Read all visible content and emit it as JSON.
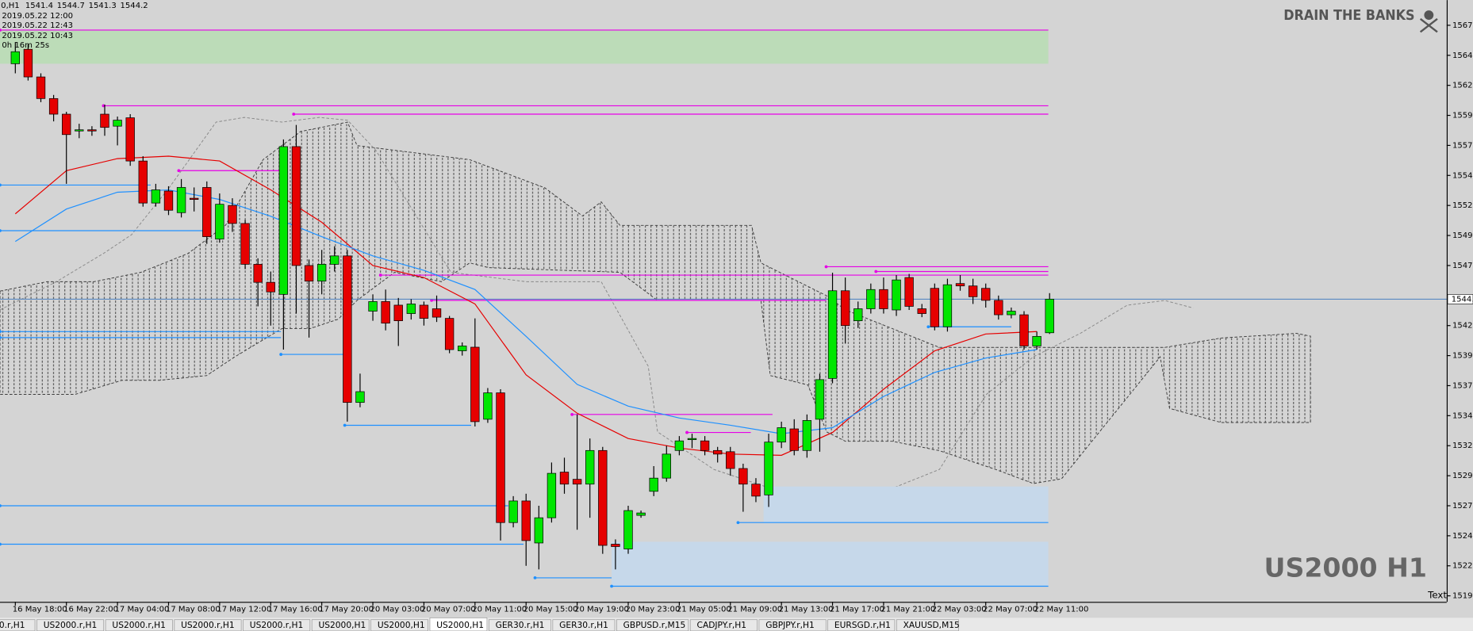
{
  "header": {
    "symbol": "0,H1",
    "lines": [
      "2019.05.22 12:00",
      "2019.05.22 12:43",
      "2019.05.22 10:43",
      "0h 16m 25s"
    ]
  },
  "brand": "DRAIN THE BANKS",
  "watermark": "US2000 H1",
  "tool_label": "Text",
  "tabs": [
    "0.r,H1",
    "US2000.r,H1",
    "US2000.r,H1",
    "US2000.r,H1",
    "US2000.r,H1",
    "US2000,H1",
    "US2000,H1",
    "US2000,H1",
    "GER30.r,H1",
    "GER30.r,H1",
    "GBPUSD.r,M15",
    "CADJPY.r,H1",
    "GBPJPY.r,H1",
    "EURSGD.r,H1",
    "XAUUSD,M15"
  ],
  "active_tab": 7,
  "chart_data": {
    "type": "candlestick",
    "up_color": "#00e600",
    "down_color": "#e60000",
    "categories": [
      "16 May 18:00",
      null,
      null,
      null,
      "16 May 22:00",
      null,
      null,
      null,
      "17 May 04:00",
      null,
      null,
      null,
      "17 May 08:00",
      null,
      null,
      null,
      "17 May 12:00",
      null,
      null,
      null,
      "17 May 16:00",
      null,
      null,
      null,
      "17 May 20:00",
      null,
      null,
      null,
      "20 May 03:00",
      null,
      null,
      null,
      "20 May 07:00",
      null,
      null,
      null,
      "20 May 11:00",
      null,
      null,
      null,
      "20 May 15:00",
      null,
      null,
      null,
      "20 May 19:00",
      null,
      null,
      null,
      "20 May 23:00",
      null,
      null,
      null,
      "21 May 05:00",
      null,
      null,
      null,
      "21 May 09:00",
      null,
      null,
      null,
      "21 May 13:00",
      null,
      null,
      null,
      "21 May 17:00",
      null,
      null,
      null,
      "21 May 21:00",
      null,
      null,
      null,
      "22 May 03:00",
      null,
      null,
      null,
      "22 May 07:00",
      null,
      null,
      null,
      "22 May 11:00",
      null
    ],
    "open": [
      1563.8,
      1565.0,
      1562.7,
      1560.9,
      1559.6,
      1558.2,
      1558.3,
      1559.6,
      1558.6,
      1559.3,
      1555.7,
      1552.2,
      1553.2,
      1551.4,
      1552.6,
      1553.5,
      1549.2,
      1552.0,
      1550.5,
      1547.1,
      1545.6,
      1544.6,
      1556.9,
      1547.0,
      1545.7,
      1547.1,
      1547.8,
      1535.6,
      1543.2,
      1544.0,
      1543.7,
      1543.0,
      1543.7,
      1543.4,
      1542.6,
      1539.9,
      1540.2,
      1534.2,
      1536.4,
      1525.6,
      1527.4,
      1523.9,
      1526.0,
      1529.8,
      1529.2,
      1528.8,
      1531.6,
      1523.8,
      1523.4,
      1526.2,
      1528.2,
      1529.3,
      1531.6,
      1532.5,
      1532.4,
      1531.6,
      1531.5,
      1530.1,
      1528.8,
      1527.9,
      1532.3,
      1533.4,
      1531.6,
      1534.2,
      1537.6,
      1544.9,
      1542.4,
      1543.4,
      1545.0,
      1543.3,
      1546.0,
      1543.4,
      1545.1,
      1541.9,
      1545.5,
      1545.3,
      1545.1,
      1544.1,
      1542.9,
      1542.9,
      1540.3,
      1541.4
    ],
    "high": [
      1565.6,
      1565.4,
      1563.0,
      1561.2,
      1559.8,
      1558.8,
      1558.6,
      1560.4,
      1559.4,
      1559.6,
      1556.1,
      1553.8,
      1553.6,
      1554.2,
      1553.5,
      1554.0,
      1553.0,
      1552.6,
      1550.8,
      1547.6,
      1546.5,
      1557.5,
      1558.7,
      1547.5,
      1548.3,
      1548.6,
      1548.3,
      1538.0,
      1544.6,
      1545.0,
      1544.3,
      1544.2,
      1544.0,
      1544.5,
      1542.8,
      1540.6,
      1542.6,
      1536.8,
      1536.7,
      1527.8,
      1528.0,
      1527.0,
      1530.6,
      1531.0,
      1534.6,
      1532.6,
      1531.9,
      1524.2,
      1527.0,
      1526.6,
      1530.3,
      1532.0,
      1532.8,
      1533.0,
      1532.8,
      1531.9,
      1531.9,
      1530.5,
      1529.3,
      1533.0,
      1534.0,
      1534.2,
      1534.6,
      1538.0,
      1546.4,
      1546.0,
      1544.0,
      1545.5,
      1546.0,
      1546.2,
      1546.3,
      1543.8,
      1545.5,
      1545.9,
      1546.2,
      1545.9,
      1545.5,
      1544.5,
      1543.5,
      1543.2,
      1541.5,
      1544.7
    ],
    "low": [
      1563.0,
      1562.4,
      1560.6,
      1559.0,
      1553.8,
      1557.6,
      1557.8,
      1557.8,
      1557.0,
      1555.3,
      1551.9,
      1551.9,
      1551.2,
      1551.0,
      1551.5,
      1548.8,
      1548.9,
      1549.8,
      1546.7,
      1543.6,
      1542.0,
      1540.0,
      1543.0,
      1541.0,
      1544.6,
      1546.5,
      1534.0,
      1535.2,
      1542.4,
      1541.6,
      1540.3,
      1542.5,
      1542.0,
      1542.3,
      1539.7,
      1539.5,
      1533.6,
      1533.9,
      1524.1,
      1525.2,
      1522.0,
      1521.7,
      1525.6,
      1528.0,
      1525.0,
      1526.0,
      1523.0,
      1521.7,
      1523.0,
      1526.0,
      1527.8,
      1529.0,
      1531.2,
      1531.8,
      1531.2,
      1530.6,
      1529.5,
      1526.5,
      1527.3,
      1526.9,
      1531.8,
      1531.2,
      1531.0,
      1531.5,
      1537.2,
      1540.5,
      1541.8,
      1543.0,
      1543.0,
      1542.8,
      1543.3,
      1542.7,
      1541.6,
      1541.5,
      1544.9,
      1543.8,
      1543.5,
      1542.5,
      1542.6,
      1540.0,
      1540.0,
      1541.3
    ],
    "close": [
      1564.8,
      1562.7,
      1560.9,
      1559.6,
      1557.9,
      1558.3,
      1558.2,
      1558.5,
      1559.1,
      1555.7,
      1552.2,
      1553.3,
      1551.6,
      1553.5,
      1552.5,
      1549.4,
      1552.1,
      1550.5,
      1547.1,
      1545.6,
      1544.8,
      1556.9,
      1547.0,
      1545.7,
      1547.1,
      1547.8,
      1535.6,
      1536.5,
      1544.0,
      1542.2,
      1542.4,
      1543.8,
      1542.6,
      1542.7,
      1540.0,
      1540.3,
      1534.0,
      1536.4,
      1525.6,
      1527.4,
      1524.1,
      1526.0,
      1529.7,
      1528.8,
      1528.8,
      1531.6,
      1523.7,
      1523.6,
      1526.6,
      1526.4,
      1529.3,
      1531.3,
      1532.4,
      1532.6,
      1531.6,
      1531.3,
      1530.1,
      1528.8,
      1527.8,
      1532.3,
      1533.5,
      1531.6,
      1534.1,
      1537.5,
      1544.9,
      1542.0,
      1543.4,
      1545.0,
      1543.4,
      1545.8,
      1543.6,
      1543.0,
      1541.9,
      1545.4,
      1545.3,
      1544.4,
      1544.1,
      1542.9,
      1543.2,
      1540.3,
      1541.1,
      1544.2
    ],
    "current_price": 1544.2,
    "xlim": [
      -1.2,
      112.1
    ],
    "ylim": [
      1519.0,
      1569.1
    ],
    "yticks": [
      {
        "value": 1567,
        "label": "1567.0"
      },
      1564.5,
      {
        "value": 1562,
        "label": "1562.0"
      },
      1559.5,
      {
        "value": 1557,
        "label": "1557.0"
      },
      1554.5,
      {
        "value": 1552,
        "label": "1552.0"
      },
      1549.5,
      {
        "value": 1547,
        "label": "1547.0"
      },
      {
        "value": 1542,
        "label": "1542.0"
      },
      1539.5,
      {
        "value": 1537,
        "label": "1537.0"
      },
      1534.5,
      {
        "value": 1532,
        "label": "1532.0"
      },
      1529.5,
      {
        "value": 1527,
        "label": "1527.0"
      },
      1524.5,
      {
        "value": 1522,
        "label": "1522.0"
      },
      1519.5
    ],
    "series": [
      {
        "color": "#e60000",
        "x": [
          0,
          4,
          8,
          12,
          16,
          20,
          24,
          28,
          32,
          36,
          40,
          44,
          48,
          52,
          56,
          60,
          64,
          68,
          72,
          76,
          80
        ],
        "values": [
          1551.3,
          1554.9,
          1555.9,
          1556.1,
          1555.7,
          1553.3,
          1550.6,
          1547.0,
          1546.0,
          1543.8,
          1537.9,
          1534.7,
          1532.6,
          1531.8,
          1531.3,
          1531.2,
          1533.1,
          1536.7,
          1539.9,
          1541.3,
          1541.5
        ]
      },
      {
        "color": "#1e90ff",
        "x": [
          0,
          4,
          8,
          12,
          16,
          20,
          24,
          28,
          32,
          36,
          40,
          44,
          48,
          52,
          56,
          60,
          64,
          68,
          72,
          76,
          80
        ],
        "values": [
          1549.0,
          1551.7,
          1553.1,
          1553.3,
          1552.5,
          1551.1,
          1549.4,
          1547.8,
          1546.6,
          1545.0,
          1541.1,
          1537.1,
          1535.3,
          1534.3,
          1533.7,
          1533.0,
          1533.5,
          1536.1,
          1538.1,
          1539.3,
          1540.0
        ]
      }
    ],
    "zones": [
      {
        "range": [
          1563.8,
          1566.6
        ],
        "x": [
          -1.2,
          80.9
        ],
        "color": "#bcdcb8"
      },
      {
        "range": [
          1525.6,
          1528.6
        ],
        "x": [
          58.6,
          80.9
        ],
        "color": "#c6d8ea"
      },
      {
        "range": [
          1520.3,
          1524.0
        ],
        "x": [
          46.7,
          80.9
        ],
        "color": "#c6d8ea"
      }
    ],
    "levels": [
      {
        "value": 1566.6,
        "x": [
          -1.2,
          80.9
        ],
        "color": "#e600e6"
      },
      {
        "value": 1560.3,
        "x": [
          6.9,
          80.9
        ],
        "color": "#e600e6"
      },
      {
        "value": 1559.6,
        "x": [
          21.8,
          80.9
        ],
        "color": "#e600e6"
      },
      {
        "value": 1554.9,
        "x": [
          12.8,
          20.9
        ],
        "color": "#e600e6"
      },
      {
        "value": 1546.9,
        "x": [
          63.5,
          80.9
        ],
        "color": "#e600e6"
      },
      {
        "value": 1546.5,
        "x": [
          67.4,
          80.9
        ],
        "color": "#e600e6"
      },
      {
        "value": 1546.2,
        "x": [
          28.6,
          80.9
        ],
        "color": "#e600e6"
      },
      {
        "value": 1544.1,
        "x": [
          32.6,
          63.5
        ],
        "color": "#e600e6"
      },
      {
        "value": 1534.6,
        "x": [
          43.6,
          59.3
        ],
        "color": "#e600e6"
      },
      {
        "value": 1533.1,
        "x": [
          52.6,
          57.6
        ],
        "color": "#e600e6"
      },
      {
        "value": 1553.7,
        "x": [
          -1.2,
          10.6
        ],
        "color": "#1e90ff"
      },
      {
        "value": 1549.9,
        "x": [
          -1.2,
          15.0
        ],
        "color": "#1e90ff"
      },
      {
        "value": 1541.5,
        "x": [
          -1.2,
          20.8
        ],
        "color": "#1e90ff"
      },
      {
        "value": 1541.0,
        "x": [
          -1.2,
          20.8
        ],
        "color": "#1e90ff"
      },
      {
        "value": 1539.6,
        "x": [
          20.8,
          25.8
        ],
        "color": "#1e90ff"
      },
      {
        "value": 1533.7,
        "x": [
          25.8,
          35.7
        ],
        "color": "#1e90ff"
      },
      {
        "value": 1541.9,
        "x": [
          71.5,
          78.0
        ],
        "color": "#1e90ff"
      },
      {
        "value": 1527.0,
        "x": [
          -1.2,
          38.6
        ],
        "color": "#1e90ff"
      },
      {
        "value": 1525.6,
        "x": [
          56.6,
          80.9
        ],
        "color": "#1e90ff"
      },
      {
        "value": 1523.8,
        "x": [
          -1.2,
          39.8
        ],
        "color": "#1e90ff"
      },
      {
        "value": 1521.0,
        "x": [
          40.7,
          46.7
        ],
        "color": "#1e90ff"
      },
      {
        "value": 1520.3,
        "x": [
          46.7,
          80.9
        ],
        "color": "#1e90ff"
      }
    ]
  }
}
